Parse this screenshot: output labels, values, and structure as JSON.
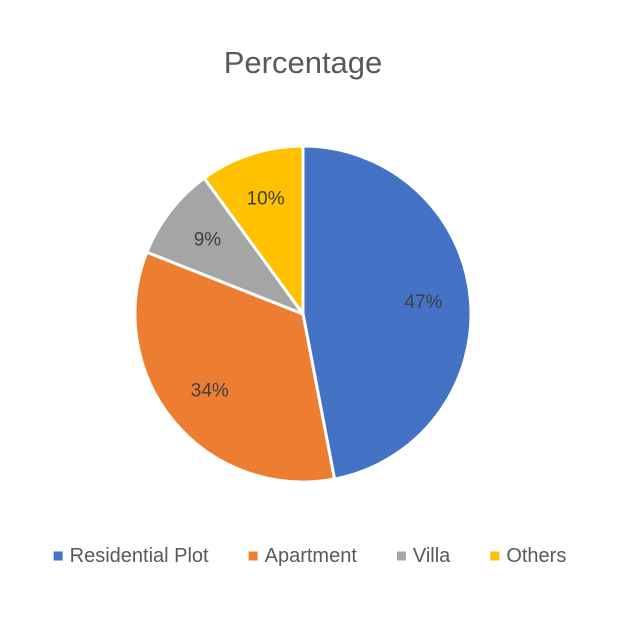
{
  "chart_data": {
    "type": "pie",
    "title": "Percentage",
    "categories": [
      "Residential Plot",
      "Apartment",
      "Villa",
      "Others"
    ],
    "values": [
      47,
      34,
      9,
      10
    ],
    "data_labels": [
      "47%",
      "34%",
      "9%",
      "10%"
    ],
    "colors": [
      "#4472C4",
      "#ED7D31",
      "#A5A5A5",
      "#FFC000"
    ],
    "start_angle_deg": 0,
    "direction": "clockwise",
    "legend_position": "bottom"
  }
}
